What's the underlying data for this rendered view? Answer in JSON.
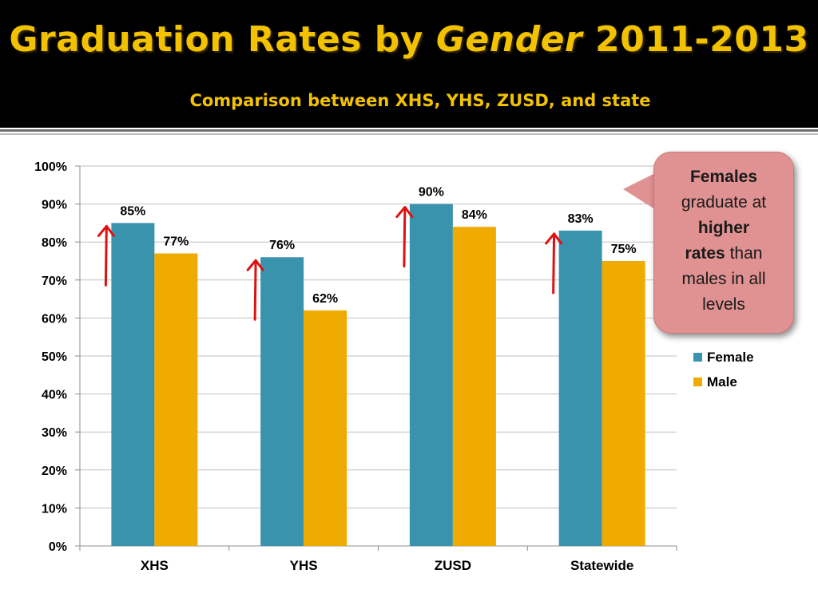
{
  "slide": {
    "title_part1": "Graduation Rates by ",
    "title_italic": "Gender",
    "title_part2": " 2011-2013",
    "subtitle": "Comparison between XHS, YHS, ZUSD, and state"
  },
  "callout": {
    "line1": "Females",
    "line2": "graduate at",
    "line3": "higher",
    "line4_bold": "rates",
    "line4_rest": " than",
    "line5": "males in all",
    "line6": "levels"
  },
  "colors": {
    "female": "#3a93ad",
    "male": "#f0ab00",
    "arrow": "#e01010",
    "grid": "#bfbfbf"
  },
  "chart_data": {
    "type": "bar",
    "categories": [
      "XHS",
      "YHS",
      "ZUSD",
      "Statewide"
    ],
    "series": [
      {
        "name": "Female",
        "values": [
          85,
          76,
          90,
          83
        ],
        "labels": [
          "85%",
          "76%",
          "90%",
          "83%"
        ]
      },
      {
        "name": "Male",
        "values": [
          77,
          62,
          84,
          75
        ],
        "labels": [
          "77%",
          "62%",
          "84%",
          "75%"
        ]
      }
    ],
    "ylim": [
      0,
      100
    ],
    "yticks": [
      "0%",
      "10%",
      "20%",
      "30%",
      "40%",
      "50%",
      "60%",
      "70%",
      "80%",
      "90%",
      "100%"
    ],
    "grid": true,
    "legend_position": "right"
  }
}
